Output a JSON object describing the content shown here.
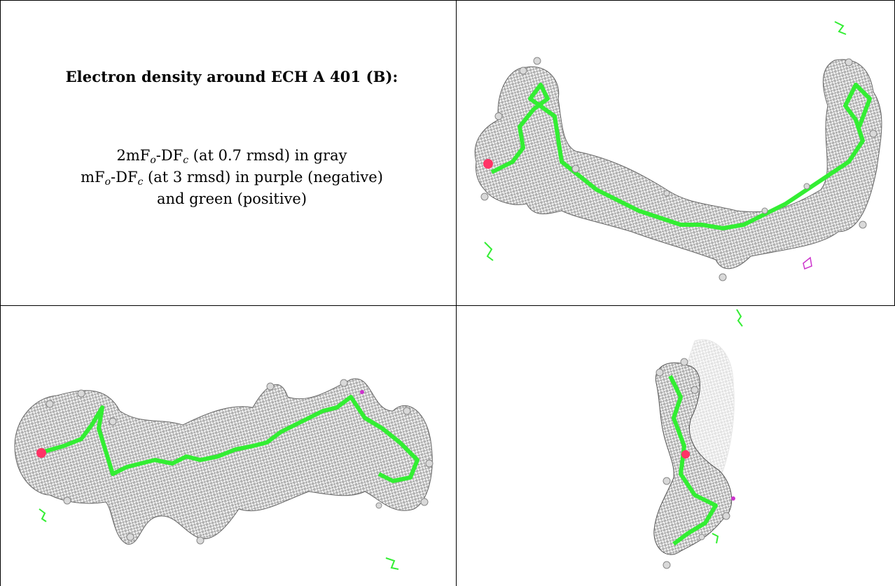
{
  "header": {
    "title": "Electron density around ECH A 401 (B):"
  },
  "legend": {
    "line1": {
      "a": "2mF",
      "a_sub": "o",
      "b": "-DF",
      "b_sub": "c",
      "rest": " (at 0.7 rmsd) in gray"
    },
    "line2": {
      "a": "mF",
      "a_sub": "o",
      "b": "-DF",
      "b_sub": "c",
      "rest": " (at 3 rmsd) in purple (negative)"
    },
    "line3": "and green (positive)"
  },
  "colors": {
    "mesh": "#8a8a8a",
    "ligand": "#33ee33",
    "negative": "#cc33cc",
    "oxygen": "#ff3366",
    "atom": "#d9d9d9"
  },
  "panels": [
    {
      "name": "view-top-right",
      "icon": "electron-density-mesh-icon"
    },
    {
      "name": "view-bottom-left",
      "icon": "electron-density-mesh-icon"
    },
    {
      "name": "view-bottom-right",
      "icon": "electron-density-mesh-icon"
    }
  ]
}
